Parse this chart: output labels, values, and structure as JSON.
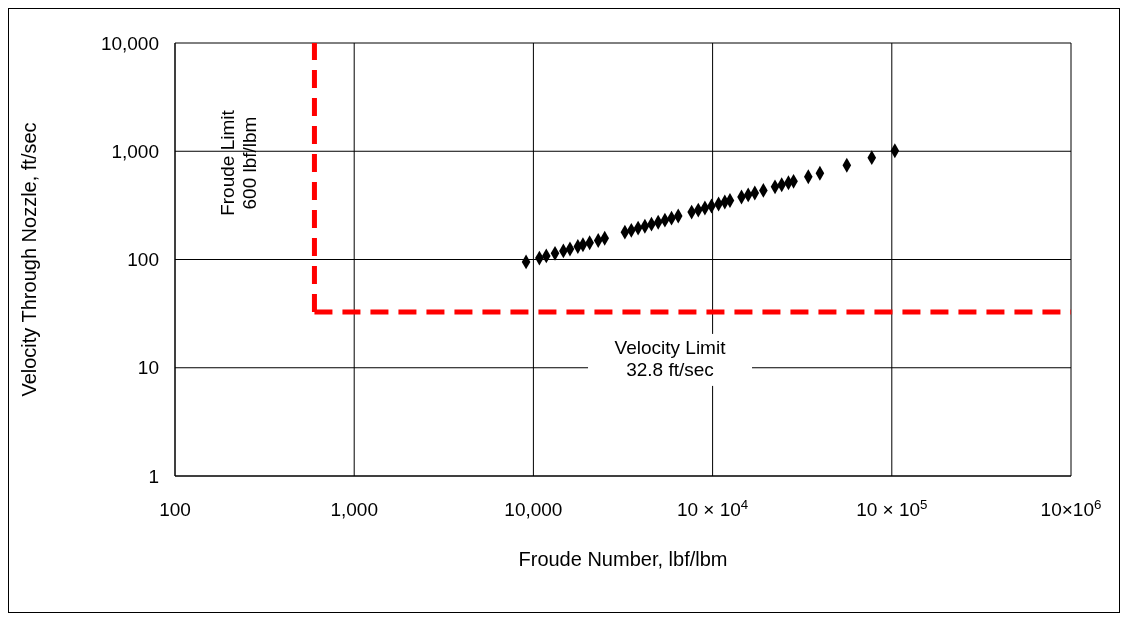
{
  "chart_data": {
    "type": "scatter",
    "xlabel": "Froude Number, lbf/lbm",
    "ylabel": "Velocity Through Nozzle, ft/sec",
    "x": [
      9100,
      10800,
      11800,
      13200,
      14700,
      16000,
      17700,
      18900,
      20600,
      23000,
      25000,
      32400,
      35200,
      38400,
      41900,
      45600,
      49700,
      54200,
      59000,
      64300,
      76400,
      83200,
      90600,
      98600,
      108000,
      117000,
      125000,
      145000,
      158000,
      172000,
      192000,
      223000,
      243000,
      265000,
      283000,
      342000,
      397000,
      561000,
      773000,
      1040000
    ],
    "series": [
      {
        "color": "#000000",
        "values": [
          95,
          103,
          108,
          114,
          120,
          125,
          132,
          137,
          143,
          150,
          157,
          179,
          186,
          195,
          203,
          212,
          221,
          231,
          241,
          252,
          274,
          286,
          299,
          312,
          326,
          340,
          351,
          378,
          395,
          412,
          435,
          469,
          490,
          511,
          527,
          581,
          627,
          743,
          873,
          1010
        ]
      }
    ],
    "log": "xy",
    "marker": "diamond",
    "grid": true,
    "legend": false,
    "xlim": [
      100,
      10000000
    ],
    "ylim": [
      1,
      10000
    ],
    "xticks": [
      100,
      {
        "value": 1000,
        "label": "1,000"
      },
      {
        "value": 10000,
        "label": "10,000"
      },
      {
        "value": 100000,
        "label": "10 × 10$^{4}$"
      },
      {
        "value": 1000000,
        "label": "10 × 10$^{5}$"
      },
      {
        "value": 10000000,
        "label": "10×10$^{6}$"
      }
    ],
    "yticks": [
      1,
      10,
      100,
      {
        "value": 1000,
        "label": "1,000"
      },
      {
        "value": 10000,
        "label": "10,000"
      }
    ],
    "ref_lines": [
      {
        "axis": "x",
        "value": 600,
        "label": "Froude Limit\n600 lbf/lbm",
        "color": "#ff0000",
        "line_style": "dashed"
      },
      {
        "axis": "y",
        "value": 32.8,
        "label": "Velocity Limit\n32.8 ft/sec",
        "color": "#ff0000",
        "line_style": "dashed"
      }
    ]
  }
}
